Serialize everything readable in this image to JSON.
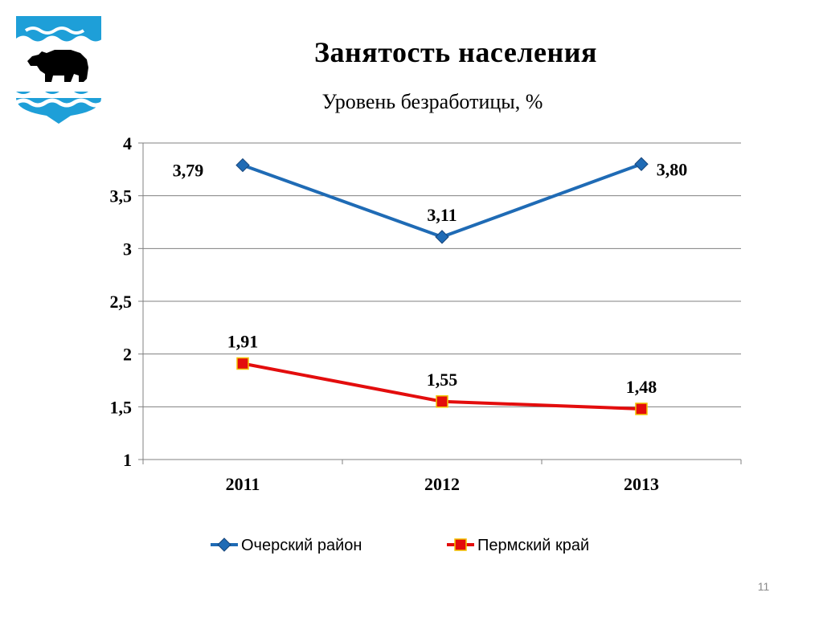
{
  "slide": {
    "title": "Занятость населения",
    "page_number": "11",
    "crest_icon": "bear-crest-icon"
  },
  "colors": {
    "series_1": "#1F6BB5",
    "series_2": "#E30D0D",
    "marker_2_border": "#F2C400",
    "grid": "#808080",
    "crest_blue": "#1E9FD8"
  },
  "chart_data": {
    "type": "line",
    "title": "Уровень безработицы, %",
    "xlabel": "",
    "ylabel": "",
    "categories": [
      "2011",
      "2012",
      "2013"
    ],
    "ylim": [
      1,
      4
    ],
    "yticks": [
      1,
      1.5,
      2,
      2.5,
      3,
      3.5,
      4
    ],
    "ytick_labels": [
      "1",
      "1,5",
      "2",
      "2,5",
      "3",
      "3,5",
      "4"
    ],
    "grid": true,
    "legend_position": "bottom",
    "series": [
      {
        "name": "Очерский район",
        "values": [
          3.79,
          3.11,
          3.8
        ],
        "labels": [
          "3,79",
          "3,11",
          "3,80"
        ],
        "marker": "diamond"
      },
      {
        "name": "Пермский край",
        "values": [
          1.91,
          1.55,
          1.48
        ],
        "labels": [
          "1,91",
          "1,55",
          "1,48"
        ],
        "marker": "square"
      }
    ]
  }
}
